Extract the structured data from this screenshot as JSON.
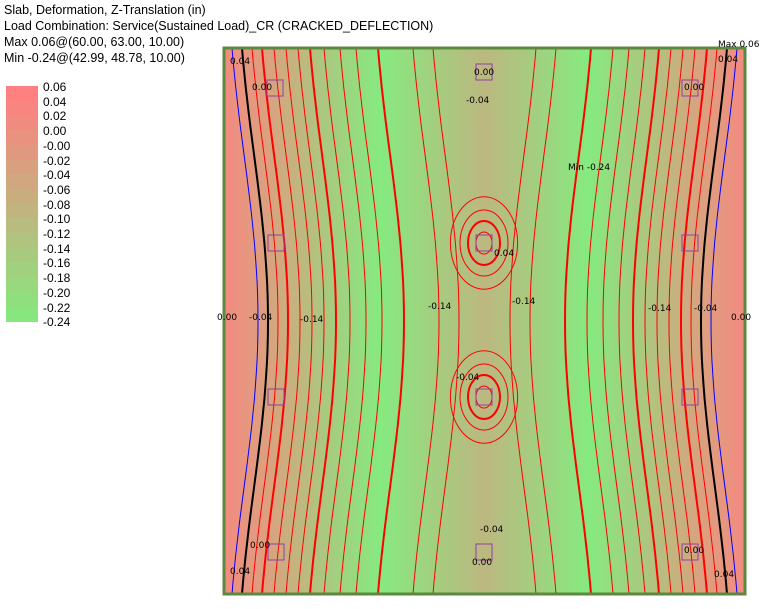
{
  "header": {
    "title": "Slab, Deformation, Z-Translation (in)",
    "load_combination": "Load Combination: Service(Sustained Load)_CR (CRACKED_DEFLECTION)",
    "max": "Max 0.06@(60.00, 63.00, 10.00)",
    "min": "Min -0.24@(42.99, 48.78, 10.00)"
  },
  "chart_data": {
    "type": "heatmap",
    "title": "Slab, Deformation, Z-Translation (in)",
    "legend_ticks": [
      "0.06",
      "0.04",
      "0.02",
      "0.00",
      "-0.00",
      "-0.02",
      "-0.04",
      "-0.06",
      "-0.08",
      "-0.10",
      "-0.12",
      "-0.14",
      "-0.16",
      "-0.18",
      "-0.20",
      "-0.22",
      "-0.24"
    ],
    "legend_colors": [
      "#ff8080",
      "#f8857f",
      "#f08c7f",
      "#e8927f",
      "#e0997f",
      "#d8a07f",
      "#d0a77f",
      "#c8ae7f",
      "#c0b57f",
      "#b8bc7f",
      "#b0c37f",
      "#a8ca7f",
      "#a0d17f",
      "#98d87f",
      "#90df7f",
      "#88e67f",
      "#80f080"
    ],
    "range": [
      -0.24,
      0.06
    ],
    "legend_placement": "left",
    "contour_labels": [
      "0.04",
      "0.00",
      "0.00",
      "-0.04",
      "0.00",
      "0.04",
      "Max 0.06",
      "Min -0.24",
      "0.04",
      "0.00",
      "-0.04",
      "-0.14",
      "-0.14",
      "-0.14",
      "-0.14",
      "-0.04",
      "0.00",
      "-0.04",
      "-0.04",
      "0.00",
      "0.00",
      "0.00",
      "0.04",
      "0.04"
    ]
  },
  "colors": {
    "max": "#ff8080",
    "min": "#80ff80",
    "frame": "#5a8a40",
    "contour": "#ff0000",
    "zero_line": "#000000",
    "positive_line": "#0000ff"
  }
}
